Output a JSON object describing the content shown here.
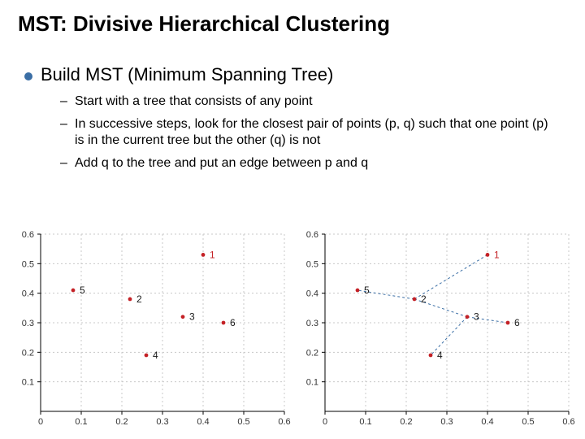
{
  "title": "MST: Divisive Hierarchical Clustering",
  "bullet": {
    "text": "Build MST (Minimum Spanning Tree)"
  },
  "subs": [
    "Start with a tree that consists of any point",
    "In successive steps, look for the closest pair of points (p, q)  such that one point (p) is in the current tree but the other (q) is not",
    "Add q to the tree and put an edge between p and q"
  ],
  "axes": {
    "xlim": [
      0,
      0.6
    ],
    "ylim": [
      0,
      0.6
    ],
    "xticks": [
      0,
      0.1,
      0.2,
      0.3,
      0.4,
      0.5,
      0.6
    ],
    "yticks": [
      0.1,
      0.2,
      0.3,
      0.4,
      0.5,
      0.6
    ],
    "tick_fontsize": 11,
    "grid_color": "#c8c8c8",
    "axis_color": "#000000",
    "background": "#ffffff"
  },
  "points": [
    {
      "id": "1",
      "x": 0.4,
      "y": 0.53,
      "label_color": "#c42126"
    },
    {
      "id": "2",
      "x": 0.22,
      "y": 0.38,
      "label_color": "#1a1a1a"
    },
    {
      "id": "3",
      "x": 0.35,
      "y": 0.32,
      "label_color": "#1a1a1a"
    },
    {
      "id": "4",
      "x": 0.26,
      "y": 0.19,
      "label_color": "#1a1a1a"
    },
    {
      "id": "5",
      "x": 0.08,
      "y": 0.41,
      "label_color": "#1a1a1a"
    },
    {
      "id": "6",
      "x": 0.45,
      "y": 0.3,
      "label_color": "#1a1a1a"
    }
  ],
  "mst_edges": [
    [
      "1",
      "2"
    ],
    [
      "2",
      "5"
    ],
    [
      "2",
      "3"
    ],
    [
      "3",
      "6"
    ],
    [
      "3",
      "4"
    ]
  ],
  "marker": {
    "radius": 2.4,
    "color": "#c42126"
  },
  "edge_style": {
    "color": "#3a6ea5",
    "dash": "3 3",
    "width": 1
  }
}
